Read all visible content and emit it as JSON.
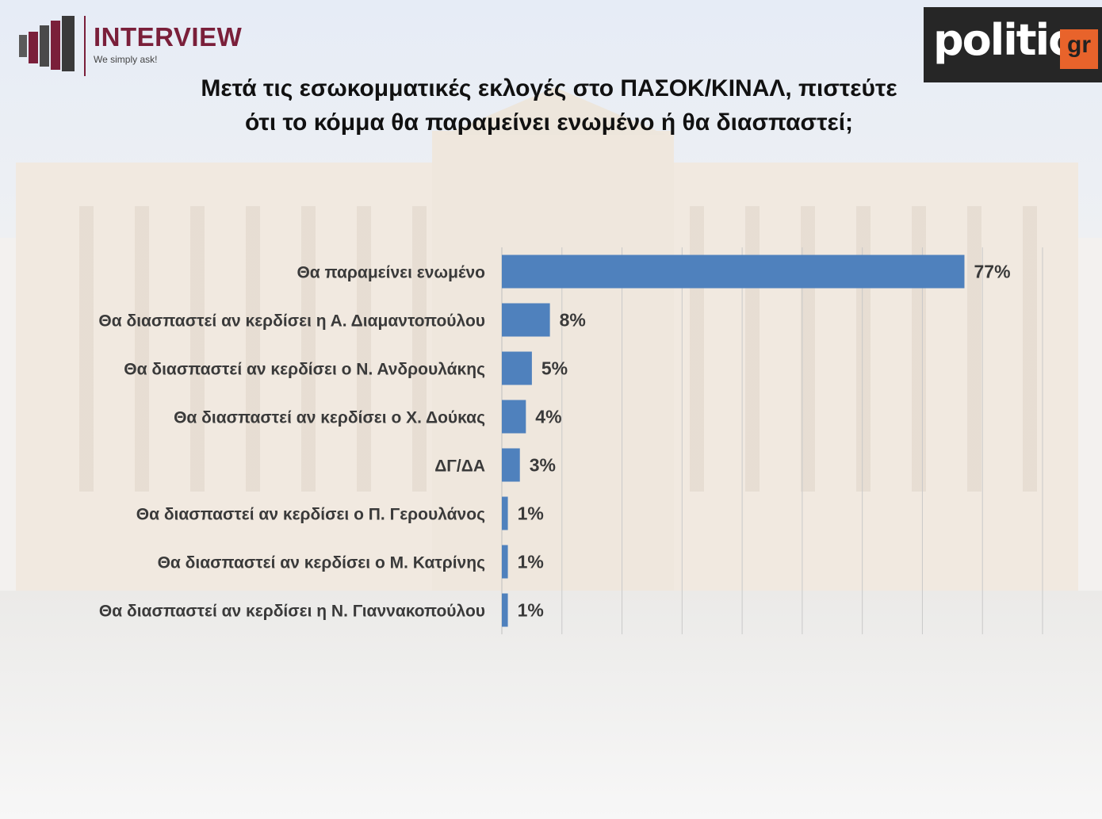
{
  "header": {
    "brand_left": "INTERVIEW",
    "brand_left_tagline": "We simply ask!",
    "brand_right": "politic",
    "brand_right_suffix": "gr"
  },
  "title": "Μετά τις εσωκομματικές εκλογές στο ΠΑΣΟΚ/ΚΙΝΑΛ, πιστεύτε ότι το κόμμα θα παραμείνει ενωμένο ή θα διασπαστεί;",
  "colors": {
    "bar": "#4f81bd",
    "brand_left": "#7a1f3a",
    "brand_right_accent": "#e8632b"
  },
  "chart_data": {
    "type": "bar",
    "orientation": "horizontal",
    "title": "Μετά τις εσωκομματικές εκλογές στο ΠΑΣΟΚ/ΚΙΝΑΛ, πιστεύτε ότι το κόμμα θα παραμείνει ενωμένο ή θα διασπαστεί;",
    "categories": [
      "Θα παραμείνει ενωμένο",
      "Θα διασπαστεί αν κερδίσει η Α. Διαμαντοπούλου",
      "Θα διασπαστεί αν κερδίσει ο Ν. Ανδρουλάκης",
      "Θα διασπαστεί αν κερδίσει ο Χ. Δούκας",
      "ΔΓ/ΔΑ",
      "Θα διασπαστεί αν κερδίσει ο Π. Γερουλάνος",
      "Θα διασπαστεί αν κερδίσει ο Μ. Κατρίνης",
      "Θα διασπαστεί αν κερδίσει η Ν. Γιαννακοπούλου"
    ],
    "values": [
      77,
      8,
      5,
      4,
      3,
      1,
      1,
      1
    ],
    "value_labels": [
      "77%",
      "8%",
      "5%",
      "4%",
      "3%",
      "1%",
      "1%",
      "1%"
    ],
    "xlim": [
      0,
      90
    ],
    "grid": true,
    "legend": "none"
  }
}
